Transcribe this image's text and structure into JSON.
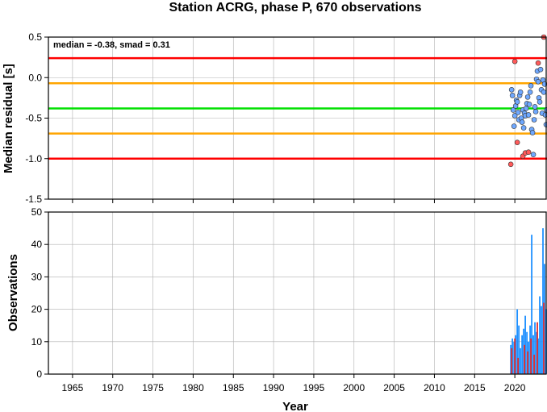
{
  "title": "Station ACRG, phase P, 670 observations",
  "colors": {
    "red_line": "#ff0000",
    "orange_line": "#ffa500",
    "green_line": "#00e000",
    "blue_point": "#6fa8ff",
    "red_point": "#ff5a5a",
    "bar_blue": "#1e90ff",
    "bar_red": "#e03030",
    "grid": "#b0b0b0"
  },
  "chart_data": [
    {
      "type": "scatter",
      "ylabel": "Median residual [s]",
      "xlim": [
        1962,
        2024
      ],
      "ylim": [
        -1.5,
        0.5
      ],
      "yticks": [
        -1.5,
        -1.0,
        -0.5,
        0.0,
        0.5
      ],
      "ytick_labels": [
        "-1.5",
        "-1.0",
        "-0.5",
        "0.0",
        "0.5"
      ],
      "annotation": "median = -0.38, smad = 0.31",
      "grid": true,
      "hlines": [
        {
          "y": 0.24,
          "color": "red"
        },
        {
          "y": -0.07,
          "color": "orange"
        },
        {
          "y": -0.38,
          "color": "green"
        },
        {
          "y": -0.69,
          "color": "orange"
        },
        {
          "y": -1.0,
          "color": "red"
        }
      ],
      "series": [
        {
          "color": "blue",
          "x": [
            2019.6,
            2019.7,
            2019.8,
            2019.9,
            2020.0,
            2020.1,
            2020.2,
            2020.3,
            2020.4,
            2020.5,
            2020.6,
            2020.7,
            2020.8,
            2020.9,
            2021.0,
            2021.1,
            2021.2,
            2021.3,
            2021.4,
            2021.5,
            2021.6,
            2021.7,
            2021.8,
            2021.9,
            2022.0,
            2022.1,
            2022.2,
            2022.3,
            2022.4,
            2022.5,
            2022.6,
            2022.7,
            2022.8,
            2022.9,
            2023.0,
            2023.1,
            2023.2,
            2023.3,
            2023.4,
            2023.5,
            2023.6,
            2023.7,
            2023.8,
            2023.9,
            2023.95
          ],
          "y": [
            -0.15,
            -0.22,
            -0.4,
            -0.6,
            -0.47,
            -0.35,
            -0.28,
            -0.3,
            -0.43,
            -0.52,
            -0.22,
            -0.18,
            -0.5,
            -0.55,
            -0.4,
            -0.62,
            -0.44,
            -0.47,
            -0.38,
            -0.32,
            -0.24,
            -0.46,
            -0.33,
            -0.18,
            -0.1,
            -0.64,
            -0.68,
            -0.95,
            -0.52,
            -0.36,
            -0.42,
            -0.02,
            0.08,
            -0.05,
            -0.25,
            -0.3,
            0.1,
            -0.15,
            -0.44,
            -0.03,
            -0.18,
            -0.08,
            -0.46,
            -0.58,
            -0.4
          ]
        },
        {
          "color": "red",
          "x": [
            2019.5,
            2020.0,
            2020.3,
            2021.0,
            2021.3,
            2021.7,
            2022.9,
            2023.6
          ],
          "y": [
            -1.07,
            0.2,
            -0.8,
            -0.97,
            -0.93,
            -0.92,
            0.18,
            0.5
          ]
        }
      ]
    },
    {
      "type": "bar",
      "xlabel": "Year",
      "ylabel": "Observations",
      "xlim": [
        1962,
        2024
      ],
      "ylim": [
        0,
        50
      ],
      "xticks": [
        1965,
        1970,
        1975,
        1980,
        1985,
        1990,
        1995,
        2000,
        2005,
        2010,
        2015,
        2020
      ],
      "xtick_labels": [
        "1965",
        "1970",
        "1975",
        "1980",
        "1985",
        "1990",
        "1995",
        "2000",
        "2005",
        "2010",
        "2015",
        "2020"
      ],
      "yticks": [
        0,
        10,
        20,
        30,
        40,
        50
      ],
      "ytick_labels": [
        "0",
        "10",
        "20",
        "30",
        "40",
        "50"
      ],
      "grid": true,
      "series": [
        {
          "color": "blue",
          "x": [
            2019.5,
            2019.7,
            2019.9,
            2020.1,
            2020.3,
            2020.5,
            2020.7,
            2020.9,
            2021.1,
            2021.3,
            2021.5,
            2021.7,
            2021.9,
            2022.1,
            2022.3,
            2022.5,
            2022.7,
            2022.9,
            2023.1,
            2023.3,
            2023.5,
            2023.7,
            2023.9
          ],
          "values": [
            9,
            11,
            10,
            12,
            20,
            15,
            8,
            12,
            14,
            18,
            13,
            10,
            15,
            43,
            12,
            16,
            13,
            11,
            24,
            21,
            45,
            34,
            20
          ]
        },
        {
          "color": "red",
          "x": [
            2019.6,
            2020.0,
            2020.4,
            2021.2,
            2021.6,
            2022.0,
            2022.4,
            2022.8,
            2023.6
          ],
          "values": [
            8,
            11,
            5,
            9,
            7,
            11,
            6,
            16,
            22
          ]
        }
      ]
    }
  ]
}
